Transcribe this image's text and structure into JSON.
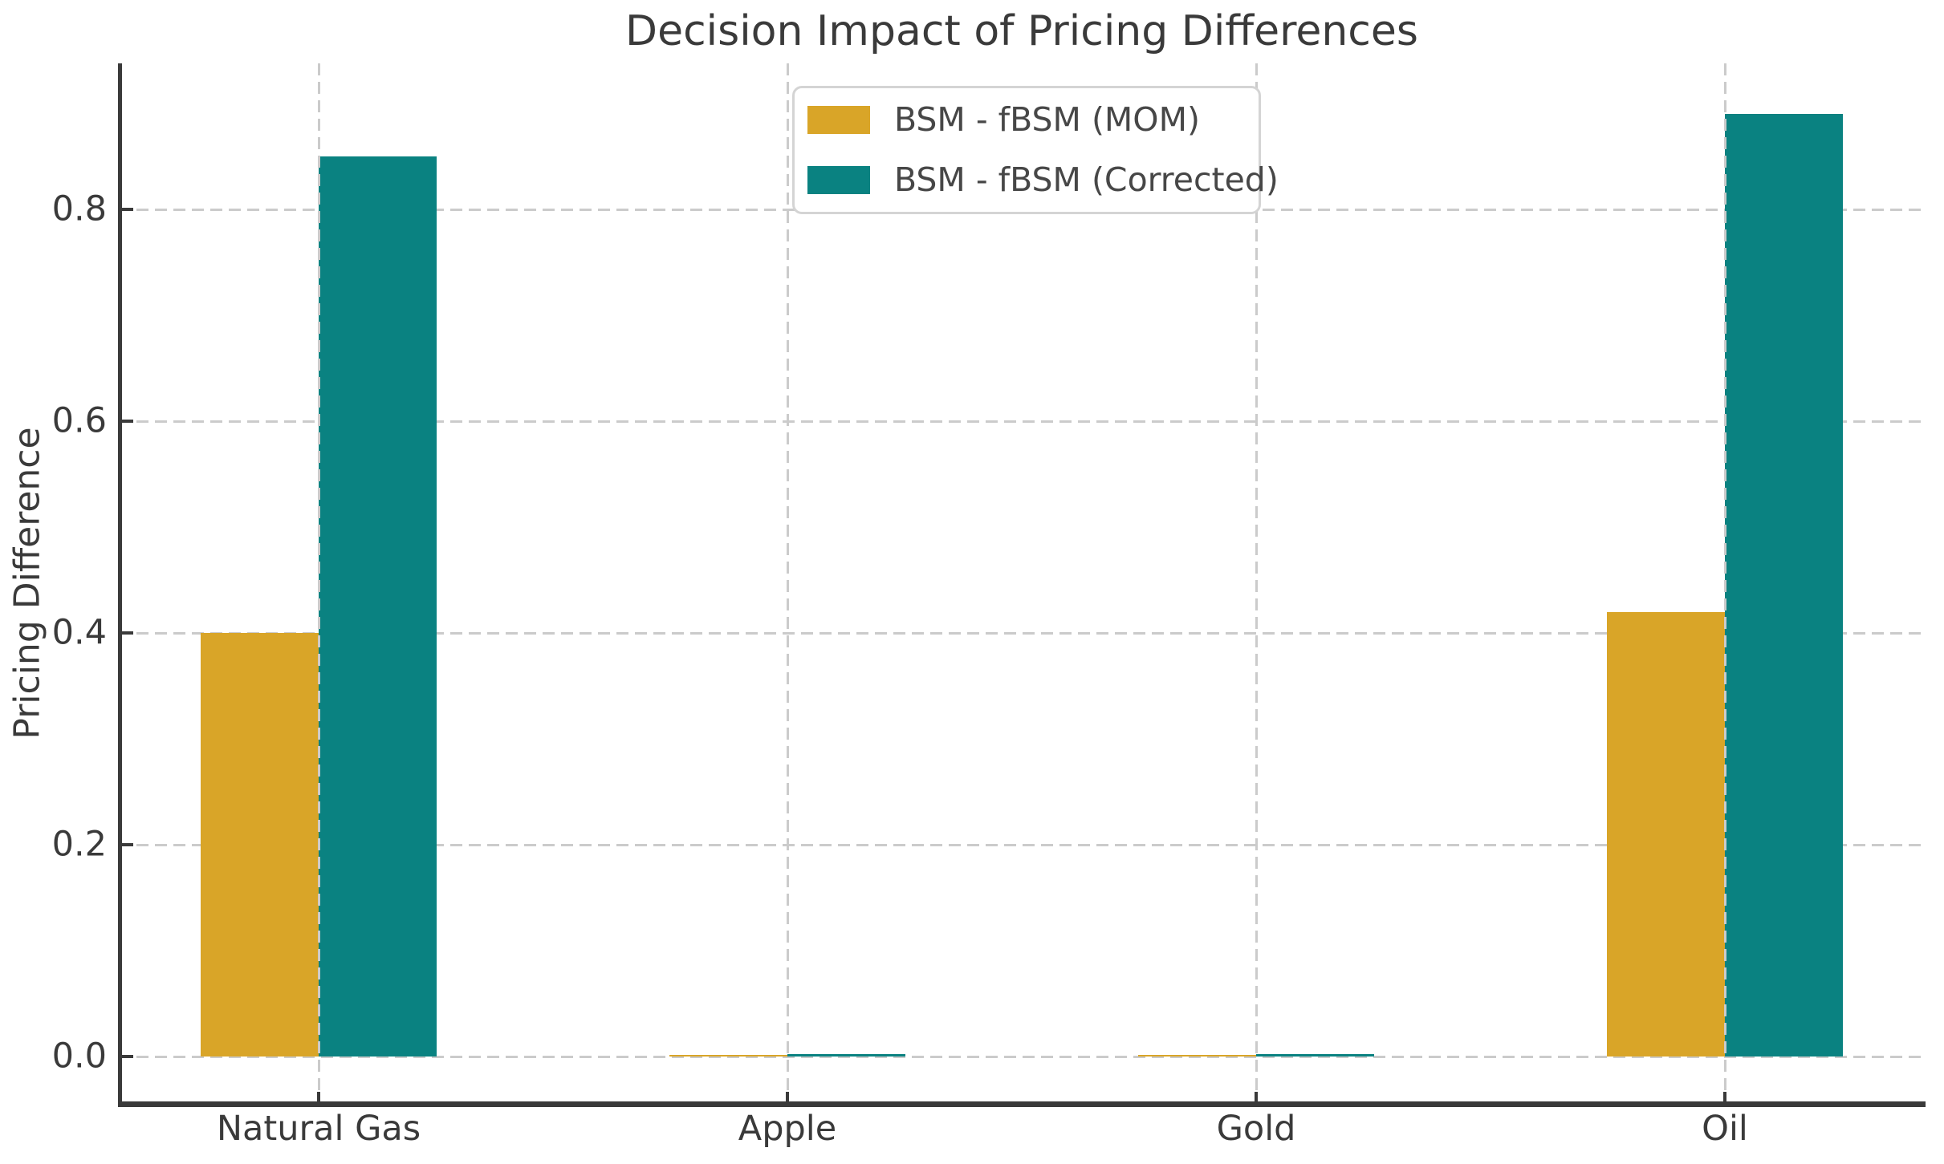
{
  "chart_data": {
    "type": "bar",
    "title": "Decision Impact of Pricing Differences",
    "xlabel": "",
    "ylabel": "Pricing Difference",
    "categories": [
      "Natural Gas",
      "Apple",
      "Gold",
      "Oil"
    ],
    "series": [
      {
        "name": "BSM - fBSM (MOM)",
        "color": "#D9A528",
        "values": [
          0.4,
          0.001,
          0.001,
          0.42
        ]
      },
      {
        "name": "BSM - fBSM (Corrected)",
        "color": "#0A8281",
        "values": [
          0.85,
          0.002,
          0.002,
          0.89
        ]
      }
    ],
    "yticks": [
      0.0,
      0.2,
      0.4,
      0.6,
      0.8
    ],
    "ytick_labels": [
      "0.0",
      "0.2",
      "0.4",
      "0.6",
      "0.8"
    ],
    "ylim": [
      -0.044,
      0.938
    ],
    "grid": true,
    "grid_style": "dashed",
    "legend_position": "upper center"
  },
  "colors": {
    "background": "#FFFFFF",
    "text": "#3A3A3A",
    "spine": "#3A3A3A",
    "grid": "#CBCBCB",
    "legend_border": "#D4D4D4"
  }
}
